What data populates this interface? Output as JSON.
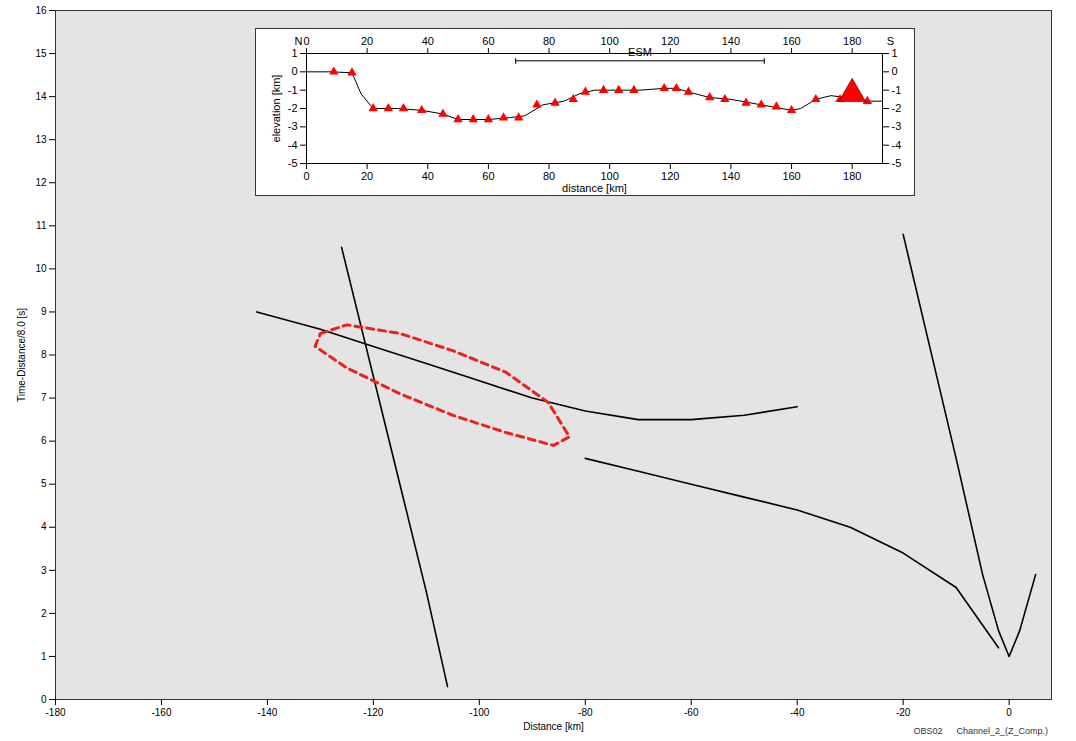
{
  "chart_data": [
    {
      "type": "line",
      "x_label": "Distance [km]",
      "y_label": "Time-Distance/8.0 [s]",
      "xlim": [
        -180,
        8
      ],
      "xticks": [
        -180,
        -160,
        -140,
        -120,
        -100,
        -80,
        -60,
        -40,
        -20,
        0
      ],
      "ylim": [
        0,
        16
      ],
      "yticks": [
        0,
        1,
        2,
        3,
        4,
        5,
        6,
        7,
        8,
        9,
        10,
        11,
        12,
        13,
        14,
        15,
        16
      ],
      "annotations": [
        "OBS02",
        "Channel_2_(Z_Comp.)"
      ],
      "series": [
        {
          "color": "#000000",
          "line_style": "solid",
          "x": [
            -20,
            -15,
            -10,
            -5,
            -2,
            0,
            2,
            5
          ],
          "values": [
            10.8,
            8.2,
            5.6,
            2.9,
            1.6,
            1.0,
            1.6,
            2.9
          ]
        },
        {
          "color": "#000000",
          "line_style": "solid",
          "x": [
            -2,
            -10,
            -20,
            -30,
            -40,
            -50,
            -60,
            -70,
            -80
          ],
          "values": [
            1.2,
            2.6,
            3.4,
            4.0,
            4.4,
            4.7,
            5.0,
            5.3,
            5.6
          ]
        },
        {
          "color": "#000000",
          "line_style": "solid",
          "x": [
            -142,
            -130,
            -120,
            -110,
            -100,
            -90,
            -80,
            -70,
            -60,
            -50,
            -40
          ],
          "values": [
            9.0,
            8.6,
            8.2,
            7.8,
            7.4,
            7.0,
            6.7,
            6.5,
            6.5,
            6.6,
            6.8
          ]
        },
        {
          "color": "#000000",
          "line_style": "solid",
          "x": [
            -126,
            -120,
            -115,
            -110,
            -106
          ],
          "values": [
            10.5,
            7.5,
            5.0,
            2.5,
            0.3
          ]
        },
        {
          "color": "#e8241f",
          "line_style": "dashed",
          "x": [
            -130,
            -125,
            -115,
            -105,
            -95,
            -87,
            -83,
            -86,
            -95,
            -105,
            -115,
            -125,
            -131,
            -130
          ],
          "values": [
            8.5,
            8.7,
            8.5,
            8.1,
            7.6,
            6.9,
            6.1,
            5.9,
            6.2,
            6.6,
            7.1,
            7.7,
            8.2,
            8.5
          ]
        }
      ]
    },
    {
      "type": "line",
      "x_label": "distance [km]",
      "y_label": "elevation [km]",
      "xlim": [
        0,
        190
      ],
      "xticks": [
        0,
        20,
        40,
        60,
        80,
        100,
        120,
        140,
        160,
        180
      ],
      "ylim": [
        -5,
        1
      ],
      "yticks": [
        -5,
        -4,
        -3,
        -2,
        -1,
        0,
        1
      ],
      "annotations": [
        {
          "text": "N"
        },
        {
          "text": "S"
        },
        {
          "text": "ESM",
          "x": [
            69,
            151
          ],
          "y": 0.6
        }
      ],
      "series": [
        {
          "type": "line",
          "color": "#000000",
          "x": [
            0,
            8,
            15,
            18,
            22,
            30,
            38,
            45,
            50,
            60,
            67,
            72,
            78,
            85,
            90,
            95,
            100,
            110,
            118,
            122,
            126,
            133,
            140,
            150,
            160,
            163,
            168,
            173,
            178,
            185,
            190
          ],
          "values": [
            0,
            0,
            -0.05,
            -1.2,
            -2.0,
            -2.0,
            -2.1,
            -2.3,
            -2.6,
            -2.6,
            -2.5,
            -2.4,
            -1.8,
            -1.6,
            -1.2,
            -1.0,
            -1.0,
            -1.0,
            -0.9,
            -0.9,
            -1.1,
            -1.4,
            -1.5,
            -1.8,
            -2.1,
            -2.0,
            -1.5,
            -1.3,
            -1.4,
            -1.6,
            -1.6
          ]
        },
        {
          "type": "scatter",
          "marker": "triangle",
          "color": "#ff0000",
          "x": [
            9,
            15,
            22,
            27,
            32,
            38,
            45,
            50,
            55,
            60,
            65,
            70,
            76,
            82,
            88,
            92,
            98,
            103,
            108,
            118,
            122,
            126,
            133,
            138,
            145,
            150,
            155,
            160,
            168,
            176,
            185
          ],
          "values": [
            0.0,
            -0.05,
            -2.0,
            -2.0,
            -2.0,
            -2.1,
            -2.3,
            -2.6,
            -2.6,
            -2.6,
            -2.5,
            -2.5,
            -1.8,
            -1.7,
            -1.5,
            -1.1,
            -1.0,
            -1.0,
            -1.0,
            -0.9,
            -0.9,
            -1.1,
            -1.4,
            -1.5,
            -1.7,
            -1.8,
            -1.9,
            -2.1,
            -1.5,
            -1.5,
            -1.6
          ]
        },
        {
          "type": "scatter",
          "marker": "triangle_large",
          "color": "#ff0000",
          "x": [
            180
          ],
          "values": [
            -1.2
          ]
        }
      ]
    }
  ]
}
